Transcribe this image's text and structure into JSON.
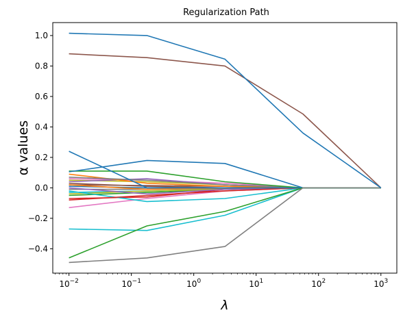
{
  "chart_data": {
    "type": "line",
    "title": "Regularization Path",
    "xlabel": "λ",
    "ylabel": "α values",
    "xscale": "log",
    "x": [
      0.01,
      0.1778,
      3.162,
      56.23,
      1000
    ],
    "xlim": [
      0.0055,
      1800
    ],
    "ylim": [
      -0.56,
      1.085
    ],
    "x_ticks": [
      {
        "value": 0.01,
        "base": "10",
        "exp": "−2"
      },
      {
        "value": 0.1,
        "base": "10",
        "exp": "−1"
      },
      {
        "value": 1,
        "base": "10",
        "exp": "0"
      },
      {
        "value": 10,
        "base": "10",
        "exp": "1"
      },
      {
        "value": 100,
        "base": "10",
        "exp": "2"
      },
      {
        "value": 1000,
        "base": "10",
        "exp": "3"
      }
    ],
    "y_ticks": [
      {
        "value": -0.4,
        "label": "−0.4"
      },
      {
        "value": -0.2,
        "label": "−0.2"
      },
      {
        "value": 0.0,
        "label": "0.0"
      },
      {
        "value": 0.2,
        "label": "0.2"
      },
      {
        "value": 0.4,
        "label": "0.4"
      },
      {
        "value": 0.6,
        "label": "0.6"
      },
      {
        "value": 0.8,
        "label": "0.8"
      },
      {
        "value": 1.0,
        "label": "1.0"
      }
    ],
    "grid": false,
    "legend": "none",
    "series": [
      {
        "color": "#bcbd22",
        "values": [
          0.05,
          0.04,
          0.02,
          0,
          0
        ]
      },
      {
        "color": "#17becf",
        "values": [
          -0.03,
          -0.02,
          -0.01,
          0,
          0
        ]
      },
      {
        "color": "#8c564b",
        "values": [
          0.02,
          0.015,
          0.01,
          0,
          0
        ]
      },
      {
        "color": "#e377c2",
        "values": [
          0.06,
          0.05,
          0.03,
          0,
          0
        ]
      },
      {
        "color": "#7f7f7f",
        "values": [
          -0.01,
          -0.01,
          -0.005,
          0,
          0
        ]
      },
      {
        "color": "#9467bd",
        "values": [
          0.04,
          0.06,
          0.02,
          0,
          0
        ]
      },
      {
        "color": "#2ca02c",
        "values": [
          -0.05,
          -0.03,
          -0.01,
          0,
          0
        ]
      },
      {
        "color": "#ff7f0e",
        "values": [
          0.09,
          0.03,
          0.01,
          0,
          0
        ]
      },
      {
        "color": "#d62728",
        "values": [
          -0.07,
          -0.06,
          -0.01,
          0,
          0
        ]
      },
      {
        "color": "#1f77b4",
        "values": [
          0.01,
          0.0,
          0.0,
          0,
          0
        ]
      },
      {
        "color": "#bcbd22",
        "values": [
          -0.04,
          -0.02,
          -0.01,
          0,
          0
        ]
      },
      {
        "color": "#8c564b",
        "values": [
          0.03,
          0.01,
          0.0,
          0,
          0
        ]
      },
      {
        "color": "#e377c2",
        "values": [
          -0.13,
          -0.07,
          -0.02,
          0,
          0
        ]
      },
      {
        "color": "#17becf",
        "values": [
          -0.02,
          -0.09,
          -0.07,
          0,
          0
        ]
      },
      {
        "color": "#7f7f7f",
        "values": [
          0.07,
          0.05,
          0.02,
          0,
          0
        ]
      },
      {
        "color": "#9467bd",
        "values": [
          0.0,
          -0.04,
          -0.01,
          0,
          0
        ]
      },
      {
        "color": "#d62728",
        "values": [
          -0.08,
          -0.05,
          -0.02,
          0,
          0
        ]
      },
      {
        "color": "#ff7f0e",
        "values": [
          0.02,
          -0.01,
          0.0,
          0,
          0
        ]
      },
      {
        "color": "#2ca02c",
        "values": [
          0.11,
          0.11,
          0.04,
          0,
          0
        ]
      },
      {
        "color": "#1f77b4",
        "values": [
          0.24,
          0.0,
          0.0,
          0,
          0
        ]
      },
      {
        "color": "#1f77b4",
        "values": [
          0.105,
          0.18,
          0.16,
          0,
          0
        ]
      },
      {
        "color": "#17becf",
        "values": [
          -0.27,
          -0.28,
          -0.18,
          0,
          0
        ]
      },
      {
        "color": "#2ca02c",
        "values": [
          -0.46,
          -0.25,
          -0.155,
          0,
          0
        ]
      },
      {
        "color": "#7f7f7f",
        "values": [
          -0.49,
          -0.46,
          -0.385,
          0,
          0
        ]
      },
      {
        "color": "#8c564b",
        "values": [
          0.88,
          0.855,
          0.8,
          0.485,
          0
        ]
      },
      {
        "color": "#1f77b4",
        "values": [
          1.015,
          1.0,
          0.845,
          0.36,
          0
        ]
      }
    ]
  }
}
